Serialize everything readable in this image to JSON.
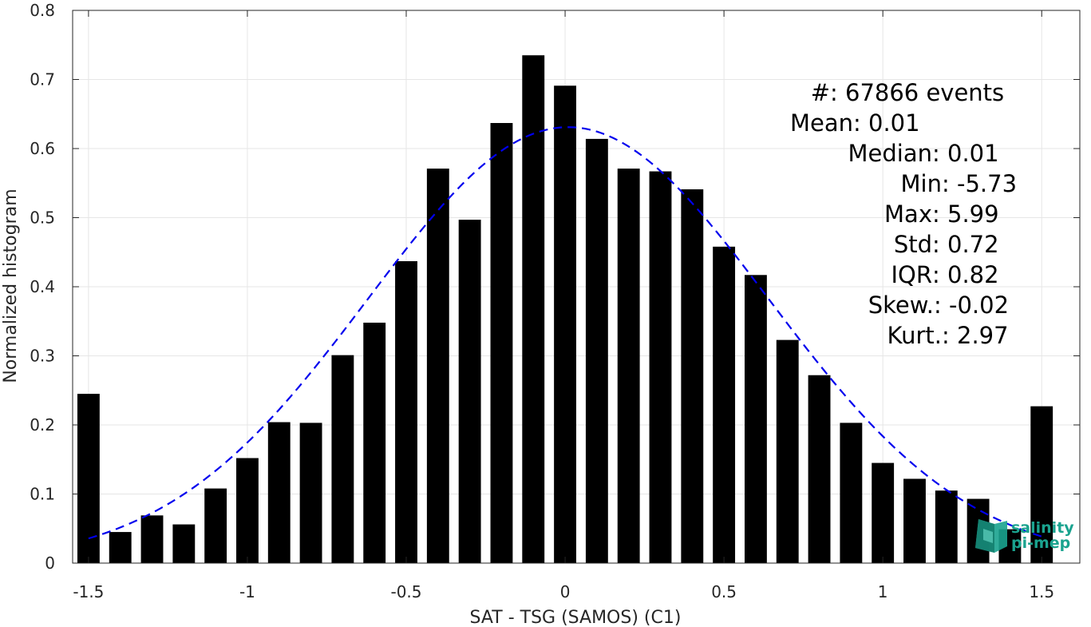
{
  "chart_data": {
    "type": "bar",
    "xlabel": "SAT - TSG (SAMOS) (C1)",
    "ylabel": "Normalized histogram",
    "xlim": [
      -1.55,
      1.62
    ],
    "ylim": [
      0,
      0.8
    ],
    "grid": true,
    "xticks": [
      -1.5,
      -1,
      -0.5,
      0,
      0.5,
      1,
      1.5
    ],
    "xtick_labels": [
      "-1.5",
      "-1",
      "-0.5",
      "0",
      "0.5",
      "1",
      "1.5"
    ],
    "yticks": [
      0,
      0.1,
      0.2,
      0.3,
      0.4,
      0.5,
      0.6,
      0.7,
      0.8
    ],
    "ytick_labels": [
      "0",
      "0.1",
      "0.2",
      "0.3",
      "0.4",
      "0.5",
      "0.6",
      "0.7",
      "0.8"
    ],
    "bar_width": 0.07,
    "bar_color": "#000000",
    "x": [
      -1.5,
      -1.4,
      -1.3,
      -1.2,
      -1.1,
      -1.0,
      -0.9,
      -0.8,
      -0.7,
      -0.6,
      -0.5,
      -0.4,
      -0.3,
      -0.2,
      -0.1,
      0.0,
      0.1,
      0.2,
      0.3,
      0.4,
      0.5,
      0.6,
      0.7,
      0.8,
      0.9,
      1.0,
      1.1,
      1.2,
      1.3,
      1.4,
      1.5
    ],
    "values": [
      0.245,
      0.045,
      0.069,
      0.056,
      0.108,
      0.152,
      0.204,
      0.203,
      0.301,
      0.348,
      0.437,
      0.571,
      0.497,
      0.637,
      0.735,
      0.691,
      0.614,
      0.571,
      0.567,
      0.541,
      0.458,
      0.417,
      0.323,
      0.272,
      0.203,
      0.145,
      0.122,
      0.105,
      0.093,
      0.049,
      0.227
    ],
    "fit_curve": {
      "kind": "gaussian",
      "mean": 0.01,
      "std": 0.63,
      "peak": 0.631,
      "x_range": [
        -1.5,
        1.5
      ],
      "color": "#0000ee",
      "style": "dashed"
    },
    "annotations": [
      {
        "label": "#  ",
        "value": ": 67866 events"
      },
      {
        "label": "Mean ",
        "value": ": 0.01"
      },
      {
        "label": "Median ",
        "value": ": 0.01"
      },
      {
        "label": "Min ",
        "value": ": -5.73"
      },
      {
        "label": "Max ",
        "value": ": 5.99"
      },
      {
        "label": "Std ",
        "value": ": 0.72"
      },
      {
        "label": "IQR ",
        "value": ": 0.82"
      },
      {
        "label": "Skew. ",
        "value": ": -0.02"
      },
      {
        "label": "Kurt. ",
        "value": ": 2.97"
      }
    ]
  },
  "logo": {
    "line1": "salinity",
    "line2": "pi-mep",
    "color": "#1aa38f"
  }
}
